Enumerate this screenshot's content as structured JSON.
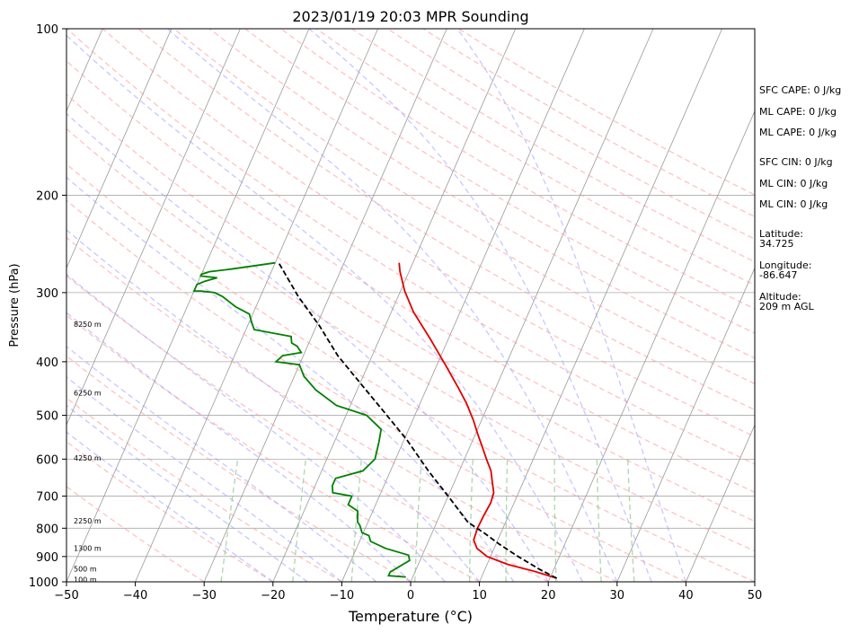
{
  "chart_data": {
    "type": "line",
    "title": "2023/01/19 20:03 MPR Sounding",
    "xlabel": "Temperature (°C)",
    "ylabel": "Pressure (hPa)",
    "xlim": [
      -50,
      50
    ],
    "ylim": [
      1000,
      100
    ],
    "y_scale": "log",
    "grid": true,
    "x_ticks": [
      "−50",
      "−40",
      "−30",
      "−20",
      "−10",
      "0",
      "10",
      "20",
      "30",
      "40",
      "50"
    ],
    "y_ticks": [
      "100",
      "200",
      "300",
      "400",
      "500",
      "600",
      "700",
      "800",
      "900",
      "1000"
    ],
    "colors": {
      "temperature": "#e00000",
      "dewpoint": "#008000",
      "parcel": "#000000",
      "dry_adiabat": "#ff9999",
      "moist_adiabat": "#9999ff",
      "mixing_ratio": "#88c888",
      "isotherm": "#999999"
    },
    "series": [
      {
        "key": "temperature",
        "points": [
          [
            21,
            985
          ],
          [
            17,
            955
          ],
          [
            13,
            930
          ],
          [
            9.5,
            900
          ],
          [
            7.5,
            870
          ],
          [
            6.5,
            840
          ],
          [
            6.3,
            800
          ],
          [
            6.4,
            760
          ],
          [
            6.6,
            720
          ],
          [
            6.4,
            690
          ],
          [
            5.5,
            660
          ],
          [
            4.6,
            630
          ],
          [
            3.2,
            600
          ],
          [
            1.8,
            570
          ],
          [
            0.3,
            540
          ],
          [
            -1.2,
            510
          ],
          [
            -3.3,
            475
          ],
          [
            -5.5,
            445
          ],
          [
            -8.8,
            405
          ],
          [
            -12.5,
            365
          ],
          [
            -16.8,
            325
          ],
          [
            -19.4,
            298
          ],
          [
            -21.3,
            275
          ],
          [
            -22,
            265
          ]
        ]
      },
      {
        "key": "dewpoint",
        "points": [
          [
            -1,
            980
          ],
          [
            -3.6,
            975
          ],
          [
            -3.6,
            960
          ],
          [
            -1.5,
            915
          ],
          [
            -2,
            895
          ],
          [
            -5.8,
            870
          ],
          [
            -8.4,
            845
          ],
          [
            -9,
            825
          ],
          [
            -10.2,
            815
          ],
          [
            -11,
            790
          ],
          [
            -11.5,
            780
          ],
          [
            -12.2,
            745
          ],
          [
            -14,
            725
          ],
          [
            -14,
            700
          ],
          [
            -17,
            690
          ],
          [
            -17.5,
            670
          ],
          [
            -17.5,
            650
          ],
          [
            -14,
            630
          ],
          [
            -13,
            600
          ],
          [
            -13.5,
            560
          ],
          [
            -14,
            530
          ],
          [
            -17,
            500
          ],
          [
            -22,
            480
          ],
          [
            -26,
            450
          ],
          [
            -28.6,
            425
          ],
          [
            -30,
            405
          ],
          [
            -33.6,
            400
          ],
          [
            -33,
            390
          ],
          [
            -30.5,
            385
          ],
          [
            -31.5,
            375
          ],
          [
            -32.5,
            370
          ],
          [
            -33,
            360
          ],
          [
            -38.8,
            350
          ],
          [
            -39.6,
            340
          ],
          [
            -40.5,
            328
          ],
          [
            -43,
            318
          ],
          [
            -45.5,
            305
          ],
          [
            -46.9,
            300
          ],
          [
            -49,
            298
          ],
          [
            -50,
            298
          ],
          [
            -50,
            290
          ],
          [
            -49,
            286
          ],
          [
            -47.5,
            282
          ],
          [
            -50,
            280
          ],
          [
            -50,
            278
          ],
          [
            -49,
            275
          ],
          [
            -46,
            272
          ],
          [
            -40,
            265
          ]
        ]
      },
      {
        "key": "parcel",
        "dashed": true,
        "points": [
          [
            21,
            985
          ],
          [
            18,
            950
          ],
          [
            14,
            900
          ],
          [
            10.5,
            855
          ],
          [
            7.5,
            815
          ],
          [
            4.5,
            780
          ],
          [
            0.3,
            705
          ],
          [
            -4.5,
            630
          ],
          [
            -9.5,
            555
          ],
          [
            -14.5,
            495
          ],
          [
            -19.7,
            440
          ],
          [
            -25,
            390
          ],
          [
            -29.5,
            345
          ],
          [
            -34.5,
            305
          ],
          [
            -39.5,
            265
          ]
        ]
      }
    ],
    "altitude_labels": [
      {
        "text": "8250 m",
        "p": 342
      },
      {
        "text": "6250 m",
        "p": 455
      },
      {
        "text": "4250 m",
        "p": 597
      },
      {
        "text": "2250 m",
        "p": 775
      },
      {
        "text": "1300 m",
        "p": 870
      },
      {
        "text": "500 m",
        "p": 948
      },
      {
        "text": "100 m",
        "p": 990
      }
    ],
    "indices": [
      {
        "label": "SFC CAPE:",
        "value": "0 J/kg"
      },
      {
        "label": "ML CAPE:",
        "value": "0 J/kg"
      },
      {
        "label": "ML CAPE:",
        "value": "0 J/kg"
      },
      {
        "label": "SFC CIN:",
        "value": "0 J/kg"
      },
      {
        "label": "ML CIN:",
        "value": "0 J/kg"
      },
      {
        "label": "ML CIN:",
        "value": "0 J/kg"
      }
    ],
    "location": {
      "latitude_label": "Latitude:",
      "latitude": "34.725",
      "longitude_label": "Longitude:",
      "longitude": "-86.647",
      "altitude_label": "Altitude:",
      "altitude": "209 m AGL"
    }
  }
}
